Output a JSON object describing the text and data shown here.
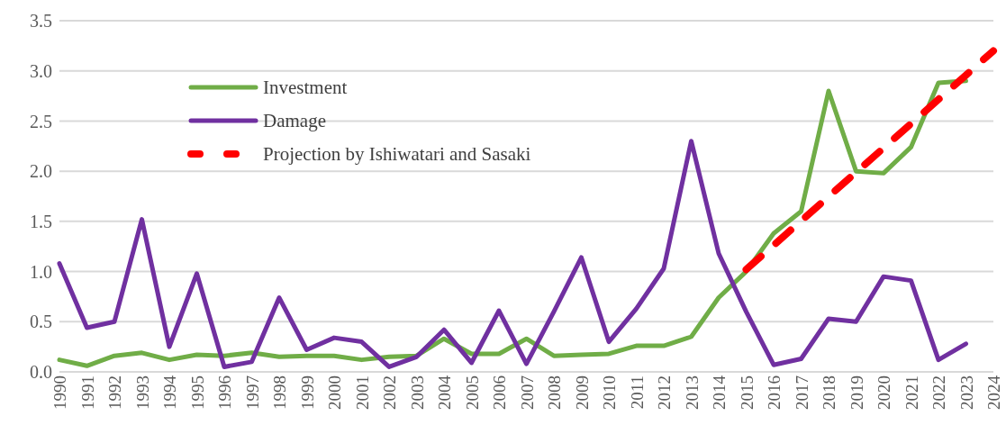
{
  "chart_data": {
    "type": "line",
    "categories": [
      "1990",
      "1991",
      "1992",
      "1993",
      "1994",
      "1995",
      "1996",
      "1997",
      "1998",
      "1999",
      "2000",
      "2001",
      "2002",
      "2003",
      "2004",
      "2005",
      "2006",
      "2007",
      "2008",
      "2009",
      "2010",
      "2011",
      "2012",
      "2013",
      "2014",
      "2015",
      "2016",
      "2017",
      "2018",
      "2019",
      "2020",
      "2021",
      "2022",
      "2023",
      "2024"
    ],
    "series": [
      {
        "name": "Investment",
        "color": "#70ad47",
        "values": [
          0.12,
          0.06,
          0.16,
          0.19,
          0.12,
          0.17,
          0.16,
          0.19,
          0.15,
          0.16,
          0.16,
          0.12,
          0.15,
          0.16,
          0.33,
          0.18,
          0.18,
          0.33,
          0.16,
          0.17,
          0.18,
          0.26,
          0.26,
          0.35,
          0.74,
          1.0,
          1.38,
          1.6,
          2.8,
          2.0,
          1.98,
          2.24,
          2.88,
          2.9,
          null
        ]
      },
      {
        "name": "Damage",
        "color": "#7030a0",
        "values": [
          1.08,
          0.44,
          0.5,
          1.52,
          0.25,
          0.98,
          0.05,
          0.1,
          0.74,
          0.22,
          0.34,
          0.3,
          0.05,
          0.15,
          0.42,
          0.09,
          0.61,
          0.08,
          0.6,
          1.14,
          0.3,
          0.63,
          1.03,
          2.3,
          1.18,
          0.6,
          0.07,
          0.13,
          0.53,
          0.5,
          0.95,
          0.91,
          0.12,
          0.28,
          null
        ]
      },
      {
        "name": "Projection by Ishiwatari and Sasaki",
        "color": "#ff0000",
        "line_style": "dashed",
        "values": [
          null,
          null,
          null,
          null,
          null,
          null,
          null,
          null,
          null,
          null,
          null,
          null,
          null,
          null,
          null,
          null,
          null,
          null,
          null,
          null,
          null,
          null,
          null,
          null,
          null,
          1.02,
          null,
          null,
          null,
          null,
          null,
          null,
          null,
          null,
          3.2
        ]
      }
    ],
    "ylim": [
      0,
      3.5
    ],
    "yticks": [
      {
        "value": 0,
        "label": "0.0"
      },
      {
        "value": 0.5,
        "label": "0.5"
      },
      {
        "value": 1,
        "label": "1.0"
      },
      {
        "value": 1.5,
        "label": "1.5"
      },
      {
        "value": 2,
        "label": "2.0"
      },
      {
        "value": 2.5,
        "label": "2.5"
      },
      {
        "value": 3,
        "label": "3.0"
      },
      {
        "value": 3.5,
        "label": "3.5"
      }
    ],
    "grid": "y",
    "legend": "top left",
    "marker": "none",
    "line_style": "solid"
  }
}
